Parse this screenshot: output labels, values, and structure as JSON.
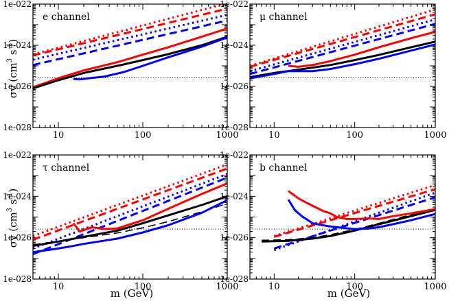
{
  "figure": {
    "ylabel_main": "σv (cm",
    "ylabel_exp1": "3",
    "ylabel_mid": " s",
    "ylabel_exp2": "-1",
    "ylabel_end": ")",
    "xlabel": "m (GeV)"
  },
  "colors": {
    "red": "#ff0000",
    "blue": "#0000ff",
    "black": "#000000"
  },
  "chart_data": [
    {
      "type": "line",
      "title": "e channel",
      "xscale": "log",
      "yscale": "log",
      "xlim": [
        5,
        1000
      ],
      "ylim": [
        1e-28,
        1e-22
      ],
      "xticks": [
        10,
        100,
        1000
      ],
      "xtick_labels": [
        "10",
        "100",
        "1000"
      ],
      "yticks": [
        1e-28,
        1e-26,
        1e-24,
        1e-22
      ],
      "ytick_labels": [
        "1e-028",
        "1e-026",
        "1e-024",
        "1e-022"
      ],
      "hline": 2.6e-26,
      "series": [
        {
          "name": "red dotted",
          "color": "red",
          "style": "dotted",
          "x": [
            5,
            1000
          ],
          "y": [
            3.6e-25,
            1.1e-22
          ]
        },
        {
          "name": "red dashed",
          "color": "red",
          "style": "dashed",
          "x": [
            5,
            1000
          ],
          "y": [
            3.2e-25,
            6e-23
          ]
        },
        {
          "name": "blue dotted",
          "color": "blue",
          "style": "dotted",
          "x": [
            5,
            1000
          ],
          "y": [
            2e-25,
            3e-23
          ]
        },
        {
          "name": "blue dashed",
          "color": "blue",
          "style": "dashed",
          "x": [
            5,
            1000
          ],
          "y": [
            1.1e-25,
            1.6e-23
          ]
        },
        {
          "name": "red solid",
          "color": "red",
          "style": "solid",
          "x": [
            5,
            10,
            20,
            50,
            100,
            200,
            500,
            1000
          ],
          "y": [
            9e-27,
            2.5e-26,
            6e-26,
            1.5e-25,
            3.5e-25,
            8e-25,
            2.6e-24,
            6.5e-24
          ]
        },
        {
          "name": "black solid",
          "color": "black",
          "style": "solid",
          "x": [
            5,
            10,
            20,
            50,
            100,
            200,
            500,
            1000
          ],
          "y": [
            8e-27,
            2e-26,
            4.5e-26,
            1e-25,
            1.9e-25,
            3.7e-25,
            1e-24,
            2.6e-24
          ]
        },
        {
          "name": "blue solid",
          "color": "blue",
          "style": "solid",
          "x": [
            15,
            18,
            25,
            35,
            60,
            100,
            200,
            500,
            1000
          ],
          "y": [
            2.3e-26,
            2.2e-26,
            2.6e-26,
            3e-26,
            5e-26,
            1e-25,
            2.6e-25,
            8.5e-25,
            2.4e-24
          ]
        }
      ]
    },
    {
      "type": "line",
      "title": "μ channel",
      "xscale": "log",
      "yscale": "log",
      "xlim": [
        5,
        1000
      ],
      "ylim": [
        1e-28,
        1e-22
      ],
      "xticks": [
        10,
        100,
        1000
      ],
      "xtick_labels": [
        "10",
        "100",
        "1000"
      ],
      "yticks": [
        1e-28,
        1e-26,
        1e-24,
        1e-22
      ],
      "ytick_labels": [
        "1e-028",
        "1e-026",
        "1e-024",
        "1e-022"
      ],
      "hline": 2.6e-26,
      "series": [
        {
          "name": "red dotted",
          "color": "red",
          "style": "dotted",
          "x": [
            5,
            1000
          ],
          "y": [
            1e-25,
            5.5e-23
          ]
        },
        {
          "name": "red dashed",
          "color": "red",
          "style": "dashed",
          "x": [
            5,
            1000
          ],
          "y": [
            9e-26,
            3.2e-23
          ]
        },
        {
          "name": "blue dotted",
          "color": "blue",
          "style": "dotted",
          "x": [
            5,
            1000
          ],
          "y": [
            5.5e-26,
            1.8e-23
          ]
        },
        {
          "name": "blue dashed",
          "color": "blue",
          "style": "dashed",
          "x": [
            5,
            1000
          ],
          "y": [
            4e-26,
            1.1e-23
          ]
        },
        {
          "name": "red solid",
          "color": "red",
          "style": "solid",
          "x": [
            15,
            20,
            30,
            50,
            100,
            200,
            500,
            1000
          ],
          "y": [
            1e-25,
            9e-26,
            1.1e-25,
            1.7e-25,
            3.5e-25,
            8e-25,
            2.2e-24,
            4.5e-24
          ]
        },
        {
          "name": "black solid",
          "color": "black",
          "style": "solid",
          "x": [
            5,
            10,
            20,
            50,
            100,
            200,
            500,
            1000
          ],
          "y": [
            2.8e-26,
            4.5e-26,
            6.5e-26,
            1.1e-25,
            1.9e-25,
            3.4e-25,
            8e-25,
            1.5e-24
          ]
        },
        {
          "name": "blue solid",
          "color": "blue",
          "style": "solid",
          "x": [
            5,
            10,
            15,
            20,
            30,
            50,
            100,
            200,
            500,
            1000
          ],
          "y": [
            2.5e-26,
            4e-26,
            5.5e-26,
            5.5e-26,
            5.5e-26,
            7e-26,
            1.2e-25,
            2.2e-25,
            5.5e-25,
            1.1e-24
          ]
        }
      ]
    },
    {
      "type": "line",
      "title": "τ channel",
      "xscale": "log",
      "yscale": "log",
      "xlim": [
        5,
        1000
      ],
      "ylim": [
        1e-28,
        1e-22
      ],
      "xticks": [
        10,
        100,
        1000
      ],
      "xtick_labels": [
        "10",
        "100",
        "1000"
      ],
      "yticks": [
        1e-28,
        1e-26,
        1e-24,
        1e-22
      ],
      "ytick_labels": [
        "1e-028",
        "1e-026",
        "1e-024",
        "1e-022"
      ],
      "hline": 2.6e-26,
      "series": [
        {
          "name": "red dotted",
          "color": "red",
          "style": "dotted",
          "x": [
            5,
            1000
          ],
          "y": [
            1.2e-26,
            3.5e-23
          ]
        },
        {
          "name": "red dashed",
          "color": "red",
          "style": "dashed",
          "x": [
            5,
            1000
          ],
          "y": [
            8e-27,
            2.2e-23
          ]
        },
        {
          "name": "blue dotted",
          "color": "blue",
          "style": "dotted",
          "x": [
            5,
            1000
          ],
          "y": [
            3e-27,
            1.2e-23
          ]
        },
        {
          "name": "blue dashed",
          "color": "blue",
          "style": "dashed",
          "x": [
            5,
            1000
          ],
          "y": [
            1.6e-27,
            8e-24
          ]
        },
        {
          "name": "red solid",
          "color": "red",
          "style": "solid",
          "x": [
            15,
            18,
            25,
            35,
            50,
            100,
            200,
            500,
            1000
          ],
          "y": [
            5e-26,
            2e-26,
            3.2e-26,
            2.6e-26,
            2.8e-26,
            7e-26,
            2.5e-25,
            1.3e-24,
            4.2e-24
          ]
        },
        {
          "name": "black solid",
          "color": "black",
          "style": "solid",
          "x": [
            5,
            10,
            20,
            50,
            100,
            200,
            500,
            1000
          ],
          "y": [
            4e-27,
            6.5e-27,
            1.1e-26,
            2.2e-26,
            5e-26,
            1.2e-25,
            3.8e-25,
            1e-24
          ]
        },
        {
          "name": "black dashed",
          "color": "black",
          "style": "dashed",
          "x": [
            5,
            50,
            100,
            200,
            500,
            1000
          ],
          "y": [
            4.5e-27,
            1.7e-26,
            3e-26,
            6e-26,
            1.8e-25,
            4.5e-25
          ]
        },
        {
          "name": "blue solid",
          "color": "blue",
          "style": "solid",
          "x": [
            5,
            10,
            15,
            20,
            30,
            50,
            100,
            200,
            500,
            1000
          ],
          "y": [
            2e-27,
            3e-27,
            4e-27,
            5e-27,
            6.5e-27,
            9e-27,
            1.8e-26,
            4e-26,
            1.6e-25,
            6.5e-25
          ]
        }
      ]
    },
    {
      "type": "line",
      "title": "b channel",
      "xscale": "log",
      "yscale": "log",
      "xlim": [
        5,
        1000
      ],
      "ylim": [
        1e-28,
        1e-22
      ],
      "xticks": [
        10,
        100,
        1000
      ],
      "xtick_labels": [
        "10",
        "100",
        "1000"
      ],
      "yticks": [
        1e-28,
        1e-26,
        1e-24,
        1e-22
      ],
      "ytick_labels": [
        "1e-028",
        "1e-026",
        "1e-024",
        "1e-022"
      ],
      "hline": 2.6e-26,
      "series": [
        {
          "name": "red dotted",
          "color": "red",
          "style": "dotted",
          "x": [
            10,
            1000
          ],
          "y": [
            1.2e-26,
            3.5e-24
          ]
        },
        {
          "name": "red dashed",
          "color": "red",
          "style": "dashed",
          "x": [
            10,
            1000
          ],
          "y": [
            1.1e-26,
            2.2e-24
          ]
        },
        {
          "name": "blue dotted",
          "color": "blue",
          "style": "dotted",
          "x": [
            10,
            1000
          ],
          "y": [
            2.5e-27,
            1.5e-24
          ]
        },
        {
          "name": "blue dashed",
          "color": "blue",
          "style": "dashed",
          "x": [
            10,
            1000
          ],
          "y": [
            3e-27,
            9e-25
          ]
        },
        {
          "name": "black dashed",
          "color": "black",
          "style": "dashed",
          "x": [
            7,
            15,
            30,
            50,
            100,
            200,
            500,
            1000
          ],
          "y": [
            7.5e-27,
            8e-27,
            1e-26,
            1.4e-26,
            2.5e-26,
            5e-26,
            1.3e-25,
            2.6e-25
          ]
        },
        {
          "name": "black solid",
          "color": "black",
          "style": "solid",
          "x": [
            7,
            15,
            30,
            50,
            100,
            200,
            500,
            1000
          ],
          "y": [
            6.5e-27,
            7e-27,
            9e-27,
            1.2e-26,
            2.2e-26,
            4.5e-26,
            1.1e-25,
            2.2e-25
          ]
        },
        {
          "name": "red solid",
          "color": "red",
          "style": "solid",
          "x": [
            15,
            20,
            25,
            30,
            40,
            50,
            60,
            80,
            100,
            150,
            200,
            300,
            500,
            1000
          ],
          "y": [
            1.8e-24,
            8e-25,
            5e-25,
            3.5e-25,
            2e-25,
            1.5e-25,
            1e-25,
            8e-26,
            8e-26,
            8.5e-26,
            8e-26,
            1.1e-25,
            1.5e-25,
            2.4e-25
          ]
        },
        {
          "name": "blue solid",
          "color": "blue",
          "style": "solid",
          "x": [
            15,
            18,
            22,
            25,
            30,
            40,
            50,
            70,
            100,
            150,
            200,
            300,
            500,
            1000
          ],
          "y": [
            7e-25,
            2.2e-25,
            1.1e-25,
            8e-26,
            5e-26,
            4e-26,
            3.5e-26,
            3e-26,
            2.6e-26,
            2.8e-26,
            3.2e-26,
            4.5e-26,
            7e-26,
            1.4e-25
          ]
        }
      ]
    }
  ]
}
